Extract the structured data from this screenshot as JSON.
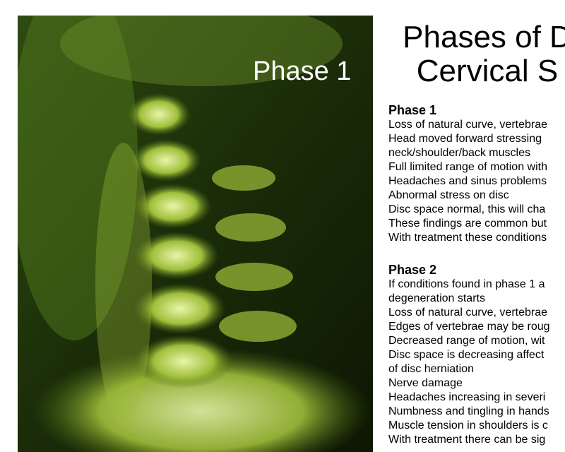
{
  "image_label": "Phase 1",
  "title": [
    "Phases of D",
    "Cervical S"
  ],
  "sections": [
    {
      "heading": "Phase 1",
      "lines": [
        "Loss of natural curve, vertebrae",
        "Head moved forward stressing",
        "neck/shoulder/back muscles",
        "Full limited range of motion with",
        "Headaches and sinus problems",
        "Abnormal stress on disc",
        "Disc space normal, this will cha",
        "These findings are common but",
        "With treatment these conditions"
      ]
    },
    {
      "heading": "Phase 2",
      "lines": [
        "If conditions found in phase 1 a",
        "degeneration starts",
        "Loss of natural curve, vertebrae",
        "Edges of vertebrae may be roug",
        "Decreased range of motion, wit",
        "Disc space is decreasing affect",
        "of disc herniation",
        "Nerve damage",
        "Headaches increasing in severi",
        "Numbness and tingling in hands",
        "Muscle tension in shoulders is c",
        "With treatment there can be sig"
      ]
    }
  ]
}
